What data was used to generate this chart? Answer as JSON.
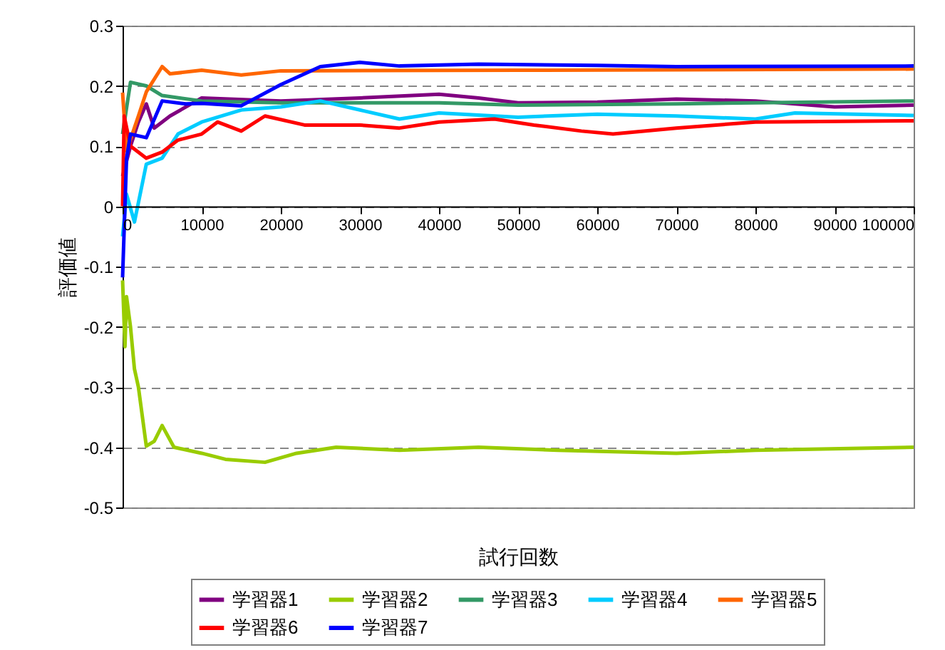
{
  "chart_data": {
    "type": "line",
    "xlabel": "試行回数",
    "ylabel": "評価値",
    "xlim": [
      0,
      100000
    ],
    "xticks": [
      0,
      10000,
      20000,
      30000,
      40000,
      50000,
      60000,
      70000,
      80000,
      90000,
      100000
    ],
    "ylim": [
      -0.5,
      0.3
    ],
    "yticks": [
      {
        "value": -0.5,
        "label": "-0.5"
      },
      {
        "value": -0.4,
        "label": "-0.4"
      },
      {
        "value": -0.3,
        "label": "-0.3"
      },
      {
        "value": -0.2,
        "label": "-0.2"
      },
      {
        "value": -0.1,
        "label": "-0.1"
      },
      0,
      0.1,
      0.2,
      0.3
    ],
    "grid": "y",
    "legend": "bottom",
    "marker": "none",
    "line_style": "solid",
    "series": [
      {
        "name": "学習器1",
        "color": "#800080",
        "x": [
          0,
          1000,
          2000,
          3000,
          4000,
          6000,
          10000,
          20000,
          30000,
          40000,
          45000,
          50000,
          60000,
          70000,
          80000,
          90000,
          100000
        ],
        "values": [
          0.05,
          0.1,
          0.14,
          0.17,
          0.13,
          0.15,
          0.18,
          0.175,
          0.18,
          0.186,
          0.18,
          0.172,
          0.173,
          0.178,
          0.175,
          0.165,
          0.168
        ]
      },
      {
        "name": "学習器2",
        "color": "#99cc00",
        "x": [
          0,
          300,
          500,
          1000,
          1500,
          2000,
          3000,
          4000,
          5000,
          6500,
          10000,
          13000,
          18000,
          22000,
          27000,
          35000,
          45000,
          55000,
          70000,
          80000,
          100000
        ],
        "values": [
          -0.123,
          -0.233,
          -0.15,
          -0.2,
          -0.27,
          -0.3,
          -0.398,
          -0.39,
          -0.364,
          -0.4,
          -0.41,
          -0.42,
          -0.425,
          -0.41,
          -0.4,
          -0.405,
          -0.4,
          -0.405,
          -0.41,
          -0.405,
          -0.4
        ]
      },
      {
        "name": "学習器3",
        "color": "#339966",
        "x": [
          0,
          1000,
          3000,
          5000,
          10000,
          20000,
          40000,
          50000,
          70000,
          80000,
          100000
        ],
        "values": [
          0.12,
          0.206,
          0.2,
          0.184,
          0.175,
          0.172,
          0.172,
          0.168,
          0.17,
          0.172,
          0.175
        ]
      },
      {
        "name": "学習器4",
        "color": "#00ccff",
        "x": [
          0,
          500,
          1500,
          3000,
          5000,
          7000,
          10000,
          15000,
          20000,
          25000,
          30000,
          35000,
          40000,
          50000,
          60000,
          70000,
          80000,
          85000,
          100000
        ],
        "values": [
          -0.05,
          0.02,
          -0.026,
          0.07,
          0.08,
          0.12,
          0.14,
          0.16,
          0.165,
          0.175,
          0.16,
          0.145,
          0.155,
          0.148,
          0.153,
          0.15,
          0.145,
          0.155,
          0.151
        ]
      },
      {
        "name": "学習器5",
        "color": "#ff6600",
        "x": [
          0,
          500,
          2000,
          3000,
          5000,
          6000,
          10000,
          15000,
          20000,
          50000,
          100000
        ],
        "values": [
          0.189,
          0.092,
          0.15,
          0.19,
          0.232,
          0.22,
          0.226,
          0.218,
          0.225,
          0.226,
          0.228
        ]
      },
      {
        "name": "学習器6",
        "color": "#ff0000",
        "x": [
          0,
          200,
          1000,
          3000,
          5000,
          7000,
          10000,
          12000,
          15000,
          18000,
          23000,
          30000,
          35000,
          40000,
          47000,
          52000,
          58000,
          62000,
          70000,
          80000,
          100000
        ],
        "values": [
          0.0,
          0.15,
          0.1,
          0.08,
          0.09,
          0.11,
          0.12,
          0.14,
          0.125,
          0.15,
          0.135,
          0.135,
          0.13,
          0.14,
          0.145,
          0.135,
          0.125,
          0.12,
          0.13,
          0.14,
          0.142
        ]
      },
      {
        "name": "学習器7",
        "color": "#0000ff",
        "x": [
          0,
          500,
          1000,
          3000,
          5000,
          8000,
          10000,
          15000,
          20000,
          25000,
          30000,
          35000,
          45000,
          60000,
          70000,
          100000
        ],
        "values": [
          -0.118,
          0.079,
          0.12,
          0.114,
          0.175,
          0.17,
          0.171,
          0.167,
          0.202,
          0.232,
          0.239,
          0.233,
          0.236,
          0.234,
          0.232,
          0.233
        ]
      }
    ]
  }
}
